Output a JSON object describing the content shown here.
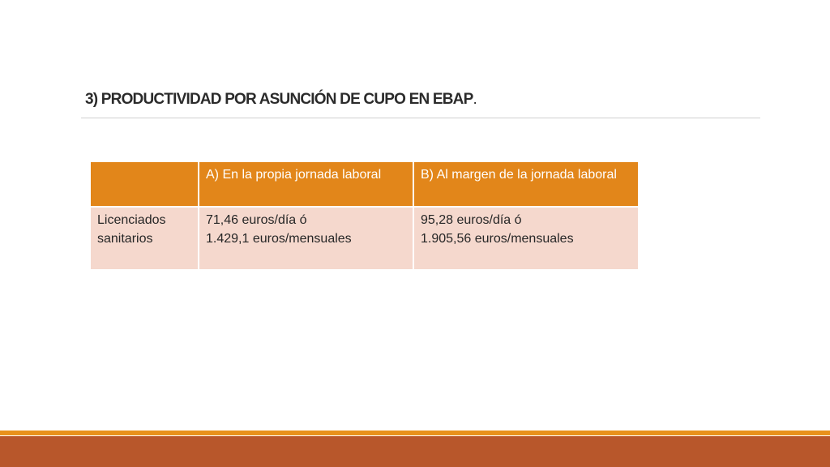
{
  "slide": {
    "title": "3) PRODUCTIVIDAD POR ASUNCIÓN DE CUPO EN EBAP",
    "title_punct": "."
  },
  "table": {
    "headers": [
      "",
      "A) En la propia jornada laboral",
      "B) Al margen de la jornada laboral"
    ],
    "rows": [
      {
        "label": [
          "Licenciados",
          "sanitarios"
        ],
        "col_a": [
          "71,46 euros/día ó",
          "1.429,1 euros/mensuales"
        ],
        "col_b": [
          "95,28 euros/día ó",
          "1.905,56 euros/mensuales"
        ]
      }
    ]
  },
  "colors": {
    "header_bg": "#e2861a",
    "row_bg": "#f5d8cd",
    "footer_accent": "#e8921c",
    "footer_band": "#b8572b"
  }
}
